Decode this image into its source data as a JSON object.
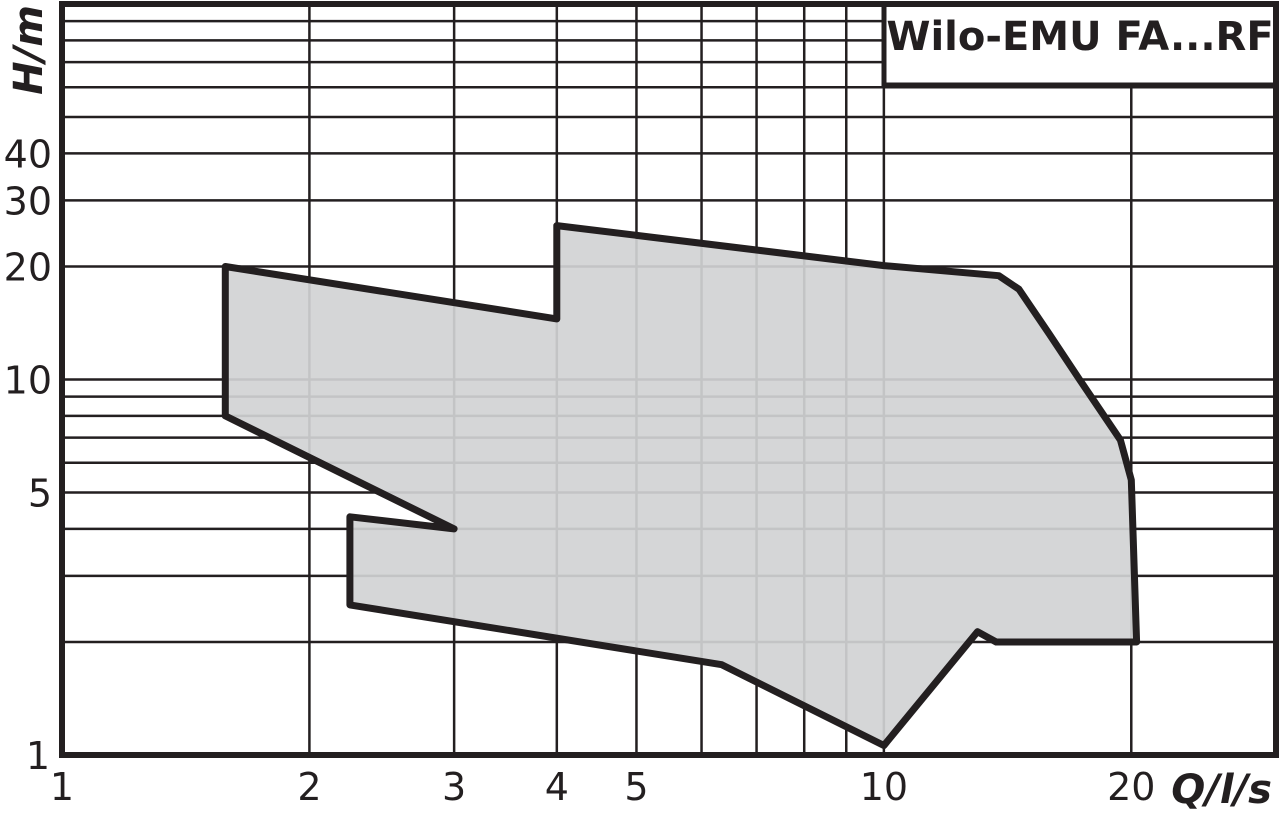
{
  "chart_data": {
    "type": "area",
    "title": "Wilo-EMU FA...RF",
    "xlabel": "Q/l/s",
    "ylabel": "H/m",
    "xscale": "log",
    "yscale": "log",
    "xlim": [
      1,
      30
    ],
    "ylim": [
      1,
      100
    ],
    "grid": true,
    "x_ticks": [
      1,
      2,
      3,
      4,
      5,
      10,
      20
    ],
    "x_tick_labels": [
      "1",
      "2",
      "3",
      "4",
      "5",
      "10",
      "20"
    ],
    "y_ticks": [
      1,
      5,
      10,
      20,
      30,
      40
    ],
    "y_tick_labels": [
      "1",
      "5",
      "10",
      "20",
      "30",
      "40"
    ],
    "x_gridlines": [
      2,
      3,
      4,
      5,
      6,
      7,
      8,
      9,
      10,
      20
    ],
    "y_gridlines": [
      2,
      3,
      4,
      5,
      6,
      7,
      8,
      9,
      10,
      20,
      30,
      40,
      50,
      60,
      70,
      80,
      90
    ],
    "fill_color": "#d1d3d4",
    "line_color": "#231f20",
    "region": [
      [
        1.58,
        20
      ],
      [
        4.0,
        14.5
      ],
      [
        4.0,
        25.7
      ],
      [
        10,
        20.1
      ],
      [
        13.8,
        18.9
      ],
      [
        14.6,
        17.4
      ],
      [
        15.9,
        13.2
      ],
      [
        17.3,
        10
      ],
      [
        19.4,
        6.9
      ],
      [
        20.0,
        5.4
      ],
      [
        20.3,
        2.0
      ],
      [
        13.7,
        2.0
      ],
      [
        13.0,
        2.13
      ],
      [
        10,
        1.06
      ],
      [
        6.35,
        1.74
      ],
      [
        2.24,
        2.51
      ],
      [
        2.24,
        4.31
      ],
      [
        3.0,
        4.0
      ],
      [
        1.58,
        8.0
      ]
    ]
  }
}
